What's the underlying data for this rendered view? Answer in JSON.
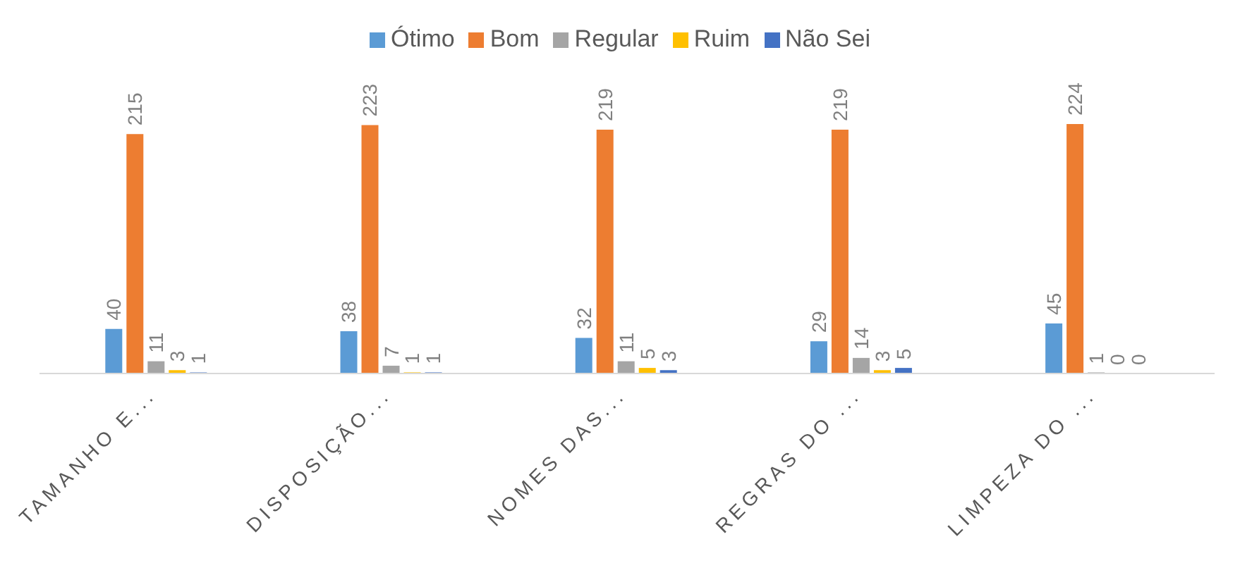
{
  "chart_data": {
    "type": "bar",
    "categories": [
      "TAMANHO E...",
      "DISPOSIÇÃO...",
      "NOMES DAS...",
      "REGRAS DO ...",
      "LIMPEZA DO ..."
    ],
    "series": [
      {
        "name": "Ótimo",
        "color": "#5b9bd5",
        "values": [
          40,
          38,
          32,
          29,
          45
        ]
      },
      {
        "name": "Bom",
        "color": "#ed7d31",
        "values": [
          215,
          223,
          219,
          219,
          224
        ]
      },
      {
        "name": "Regular",
        "color": "#a5a5a5",
        "values": [
          11,
          7,
          11,
          14,
          1
        ]
      },
      {
        "name": "Ruim",
        "color": "#ffc000",
        "values": [
          3,
          1,
          5,
          3,
          0
        ]
      },
      {
        "name": "Não Sei",
        "color": "#4472c4",
        "values": [
          1,
          1,
          3,
          5,
          0
        ]
      }
    ],
    "data_labels": true,
    "legend": "top",
    "grid": false
  }
}
